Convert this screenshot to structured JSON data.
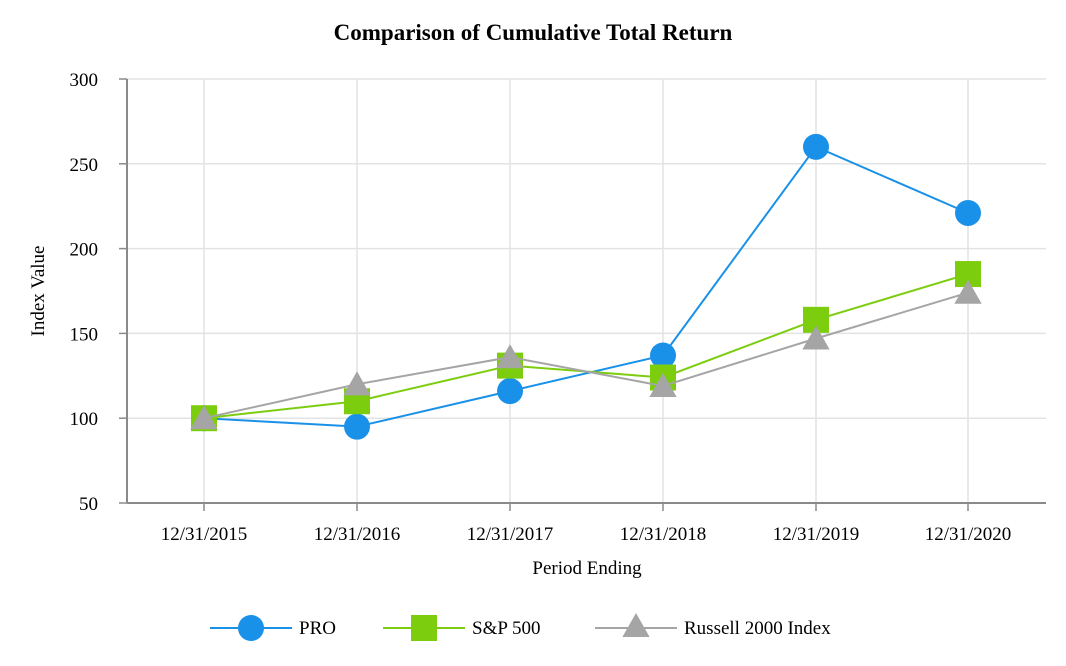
{
  "chart_data": {
    "type": "line",
    "title": "Comparison of Cumulative Total Return",
    "xlabel": "Period Ending",
    "ylabel": "Index Value",
    "categories": [
      "12/31/2015",
      "12/31/2016",
      "12/31/2017",
      "12/31/2018",
      "12/31/2019",
      "12/31/2020"
    ],
    "ylim": [
      50,
      300
    ],
    "yticks": [
      50,
      100,
      150,
      200,
      250,
      300
    ],
    "grid": true,
    "legend_position": "bottom",
    "series": [
      {
        "name": "PRO",
        "marker": "circle",
        "color": "#1a91e8",
        "values": [
          100,
          95,
          116,
          137,
          260,
          221
        ]
      },
      {
        "name": "S&P 500",
        "marker": "square",
        "color": "#7dcd0f",
        "values": [
          100,
          110,
          131,
          124,
          158,
          185
        ]
      },
      {
        "name": "Russell 2000 Index",
        "marker": "triangle",
        "color": "#a5a5a5",
        "values": [
          100,
          120,
          136,
          119,
          147,
          174
        ]
      }
    ]
  }
}
